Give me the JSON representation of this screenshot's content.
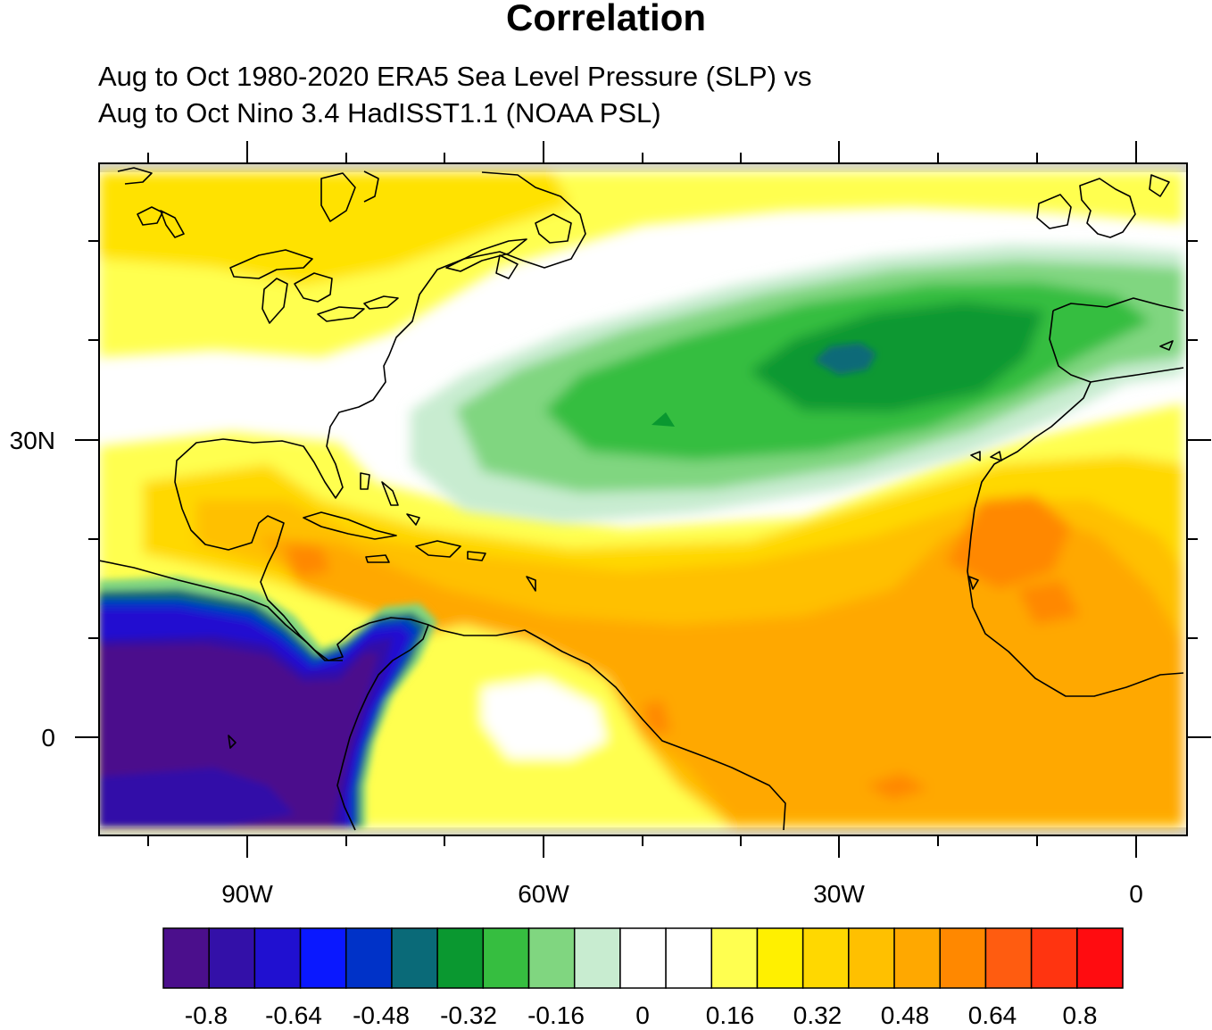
{
  "title": "Correlation",
  "subtitle": [
    "Aug to Oct 1980-2020 ERA5 Sea Level Pressure (SLP) vs",
    "Aug to Oct Nino 3.4 HadISST1.1 (NOAA PSL)"
  ],
  "map": {
    "lon_labels": [
      "90W",
      "60W",
      "30W",
      "0"
    ],
    "lat_labels": [
      "30N",
      "0"
    ],
    "lon_range": [
      -105,
      5
    ],
    "lat_range": [
      -10,
      56
    ],
    "ocean_fill": "#ffffff",
    "land_missing_fill": "#d3d3d3",
    "coastline_color": "#000000"
  },
  "colorbar": {
    "labels": [
      "-0.8",
      "-0.64",
      "-0.48",
      "-0.32",
      "-0.16",
      "0",
      "0.16",
      "0.32",
      "0.48",
      "0.64",
      "0.8"
    ],
    "colors": [
      "#4b0f8c",
      "#3310a8",
      "#2010d0",
      "#0a18ff",
      "#0032c8",
      "#0a6a78",
      "#0a9830",
      "#36be40",
      "#80d680",
      "#c8ecd0",
      "#ffffff",
      "#ffffff",
      "#ffff50",
      "#fff000",
      "#ffd800",
      "#ffc000",
      "#ffa800",
      "#ff8800",
      "#ff5c10",
      "#ff3410",
      "#ff0c10"
    ]
  }
}
